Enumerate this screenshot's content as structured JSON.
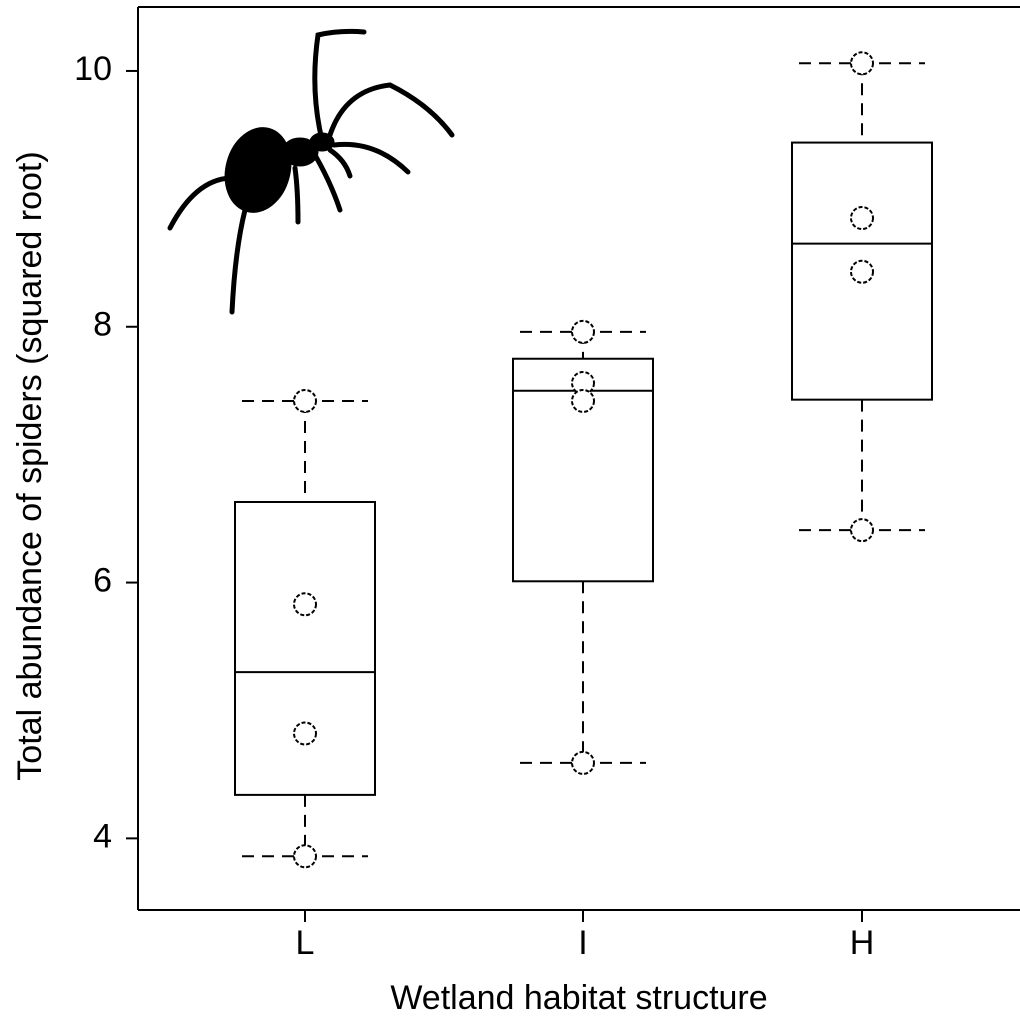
{
  "chart_data": {
    "type": "box",
    "x_label": "Wetland habitat structure",
    "y_label": "Total abundance of spiders (squared root)",
    "categories": [
      "L",
      "I",
      "H"
    ],
    "boxes": [
      {
        "low": 3.86,
        "q1": 4.34,
        "median": 5.3,
        "q3": 6.63,
        "high": 7.42,
        "points": [
          7.42,
          5.83,
          4.82,
          3.86
        ]
      },
      {
        "low": 4.59,
        "q1": 6.01,
        "median": 7.5,
        "q3": 7.75,
        "high": 7.96,
        "points": [
          7.96,
          7.56,
          7.42,
          4.59
        ]
      },
      {
        "low": 6.41,
        "q1": 7.43,
        "median": 8.65,
        "q3": 9.44,
        "high": 10.06,
        "points": [
          10.06,
          8.85,
          8.43,
          6.41
        ]
      }
    ],
    "ylim": [
      3.44,
      10.5
    ],
    "yticks": [
      4,
      6,
      8,
      10
    ]
  }
}
